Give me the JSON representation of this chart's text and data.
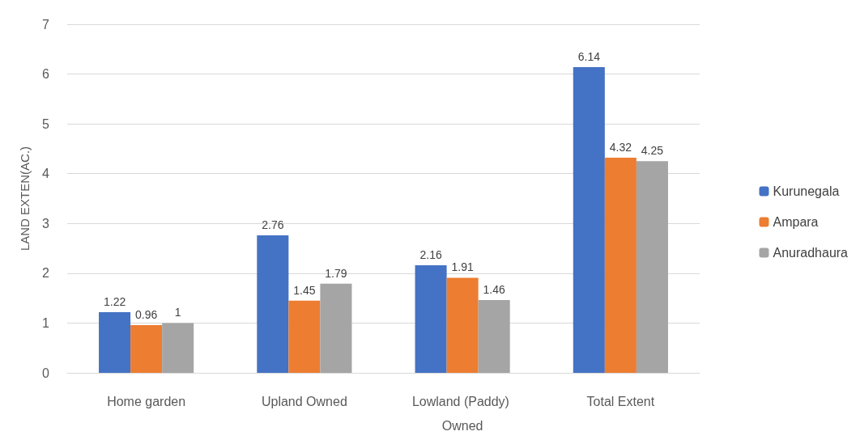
{
  "chart_data": {
    "type": "bar",
    "ylabel": "LAND EXTEN(AC.)",
    "categories": [
      "Home garden",
      "Upland Owned",
      "Lowland (Paddy) Owned",
      "Total Extent"
    ],
    "series": [
      {
        "name": "Kurunegala",
        "color": "#4472c4",
        "values": [
          1.22,
          2.76,
          2.16,
          6.14
        ]
      },
      {
        "name": "Ampara",
        "color": "#ed7d31",
        "values": [
          0.96,
          1.45,
          1.91,
          4.32
        ]
      },
      {
        "name": "Anuradhaura",
        "color": "#a5a5a5",
        "values": [
          1,
          1.79,
          1.46,
          4.25
        ]
      }
    ],
    "ylim": [
      0,
      7
    ],
    "yticks": [
      0,
      1,
      2,
      3,
      4,
      5,
      6,
      7
    ],
    "grid": "y",
    "legend": "right",
    "data_labels": true
  }
}
